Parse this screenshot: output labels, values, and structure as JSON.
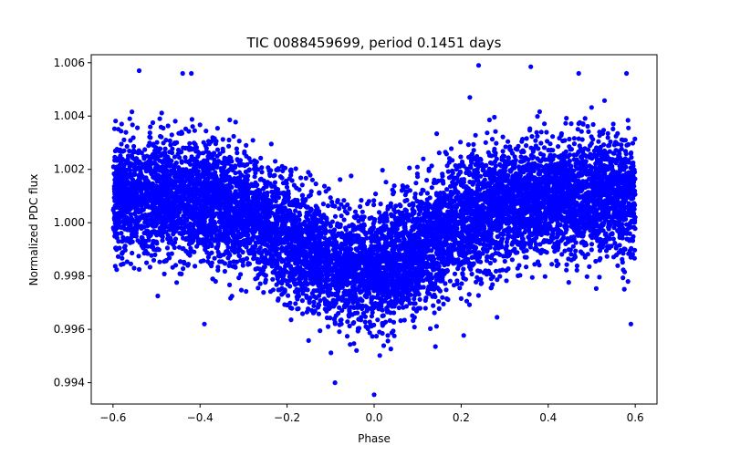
{
  "chart_data": {
    "type": "scatter",
    "title": "TIC 0088459699, period 0.1451 days",
    "xlabel": "Phase",
    "ylabel": "Normalized PDC flux",
    "xlim": [
      -0.65,
      0.65
    ],
    "ylim": [
      0.9932,
      1.0063
    ],
    "x_ticks": [
      -0.6,
      -0.4,
      -0.2,
      0.0,
      0.2,
      0.4,
      0.6
    ],
    "x_tick_labels": [
      "−0.6",
      "−0.4",
      "−0.2",
      "0.0",
      "0.2",
      "0.4",
      "0.6"
    ],
    "y_ticks": [
      0.994,
      0.996,
      0.998,
      1.0,
      1.002,
      1.004,
      1.006
    ],
    "y_tick_labels": [
      "0.994",
      "0.996",
      "0.998",
      "1.000",
      "1.002",
      "1.004",
      "1.006"
    ],
    "marker_color": "#0000ff",
    "series": [
      {
        "name": "PDC flux",
        "phase_range": [
          -0.6,
          0.6
        ],
        "n_points": 9000,
        "model": {
          "baseline": 1.001,
          "eclipse_center": -0.03,
          "eclipse_depth": 0.0028,
          "eclipse_width": 0.16,
          "scatter_sigma": 0.0011
        },
        "outliers": [
          {
            "x": 0.0,
            "y": 0.99355
          },
          {
            "x": -0.09,
            "y": 0.994
          },
          {
            "x": 0.24,
            "y": 1.0059
          },
          {
            "x": 0.36,
            "y": 1.00585
          },
          {
            "x": -0.54,
            "y": 1.0057
          },
          {
            "x": -0.44,
            "y": 1.0056
          },
          {
            "x": 0.47,
            "y": 1.0056
          },
          {
            "x": 0.58,
            "y": 1.0056
          },
          {
            "x": -0.42,
            "y": 1.0056
          },
          {
            "x": 0.59,
            "y": 0.9962
          },
          {
            "x": -0.39,
            "y": 0.9962
          },
          {
            "x": 0.22,
            "y": 1.0047
          }
        ]
      }
    ]
  }
}
